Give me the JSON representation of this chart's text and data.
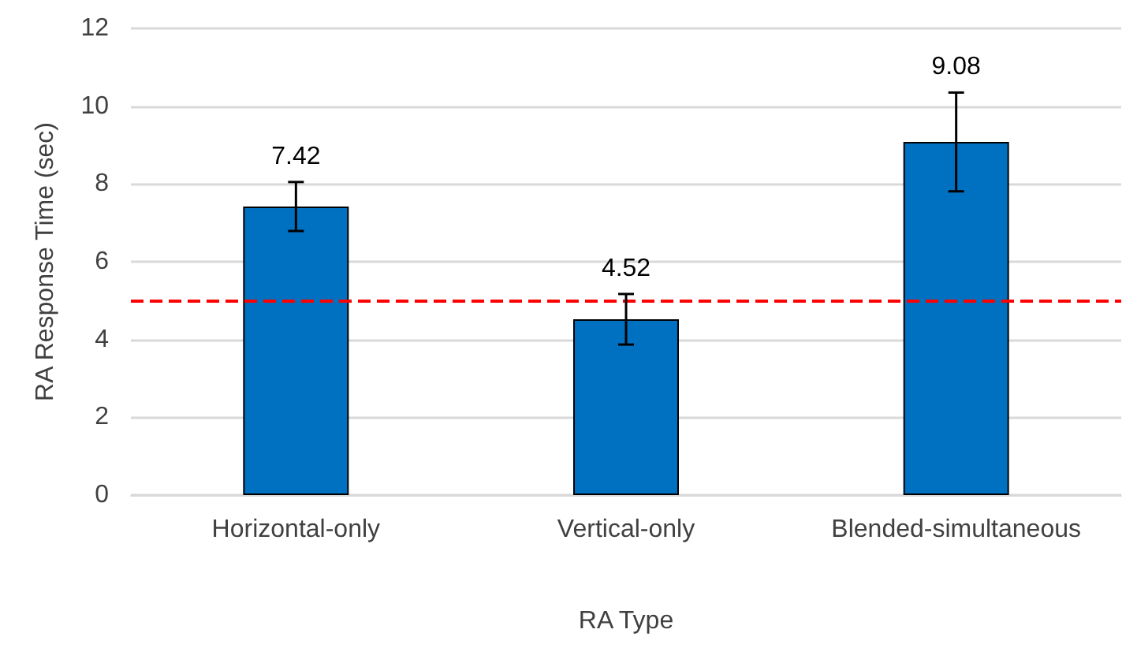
{
  "chart_data": {
    "type": "bar",
    "xlabel": "RA Type",
    "ylabel": "RA Response Time (sec)",
    "categories": [
      "Horizontal-only",
      "Vertical-only",
      "Blended-simultaneous"
    ],
    "values": [
      7.42,
      4.52,
      9.08
    ],
    "errors": [
      0.63,
      0.65,
      1.27
    ],
    "color": "#0070c0",
    "data_labels": true,
    "ylim": [
      0,
      12
    ],
    "yticks": [
      0,
      2,
      4,
      6,
      8,
      10,
      12
    ],
    "grid": "y",
    "ref_lines": [
      {
        "axis": "y",
        "value": 5,
        "color": "#ff0000",
        "line_style": "dashed"
      }
    ]
  }
}
